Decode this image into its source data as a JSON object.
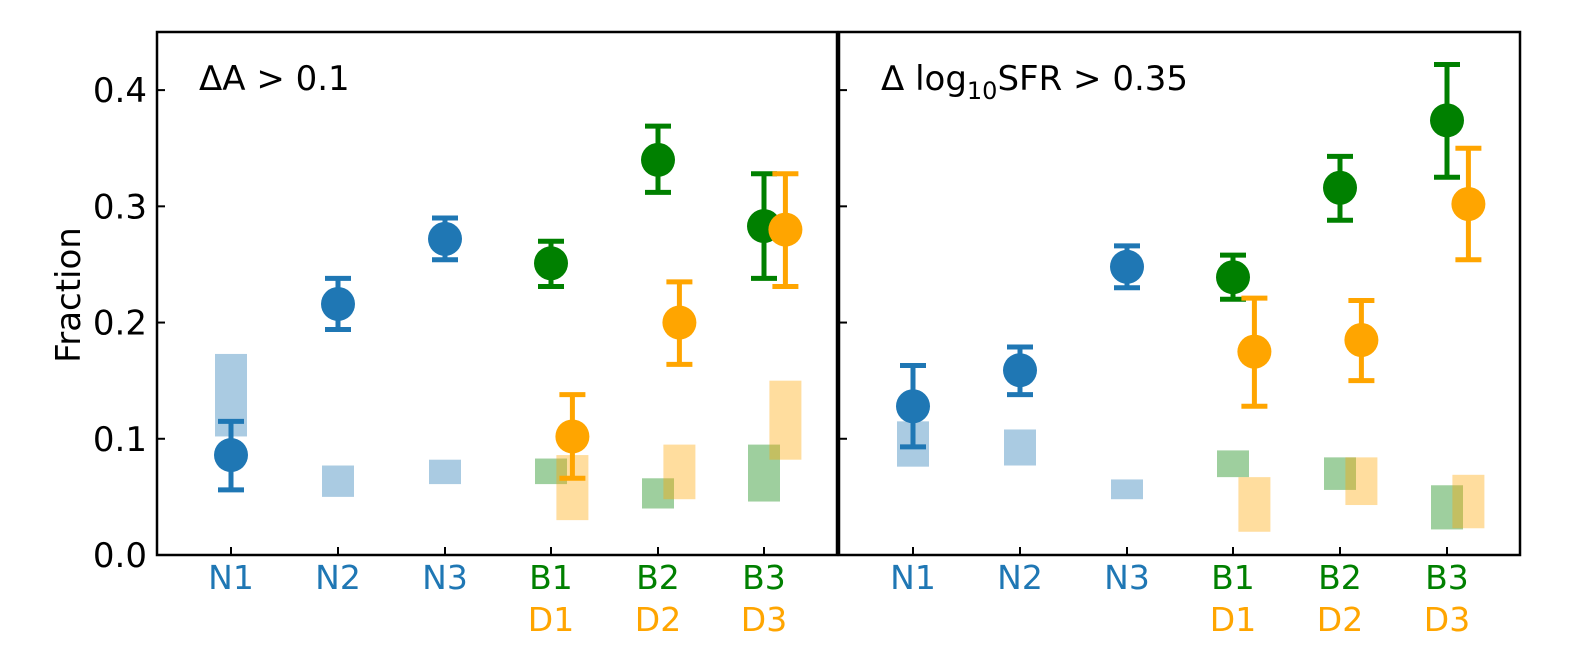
{
  "colors": {
    "N": "#1f77b4",
    "B": "#008000",
    "D": "#ffa500"
  },
  "chart_data": {
    "type": "scatter",
    "ylabel": "Fraction",
    "ylim": [
      0.0,
      0.45
    ],
    "yticks": [
      "0.0",
      "0.1",
      "0.2",
      "0.3",
      "0.4"
    ],
    "categories": [
      {
        "top": "N1",
        "bottom": "",
        "top_color": "N",
        "bottom_color": ""
      },
      {
        "top": "N2",
        "bottom": "",
        "top_color": "N",
        "bottom_color": ""
      },
      {
        "top": "N3",
        "bottom": "",
        "top_color": "N",
        "bottom_color": ""
      },
      {
        "top": "B1",
        "bottom": "D1",
        "top_color": "B",
        "bottom_color": "D"
      },
      {
        "top": "B2",
        "bottom": "D2",
        "top_color": "B",
        "bottom_color": "D"
      },
      {
        "top": "B3",
        "bottom": "D3",
        "top_color": "B",
        "bottom_color": "D"
      }
    ],
    "panels": [
      {
        "annotation_pre": "ΔA > 0.1",
        "annotation_sub": "",
        "annotation_post": "",
        "points": [
          {
            "cat": 0,
            "offset": 0,
            "y": 0.086,
            "lo": 0.056,
            "hi": 0.115,
            "group": "N"
          },
          {
            "cat": 1,
            "offset": 0,
            "y": 0.216,
            "lo": 0.194,
            "hi": 0.238,
            "group": "N"
          },
          {
            "cat": 2,
            "offset": 0,
            "y": 0.272,
            "lo": 0.254,
            "hi": 0.29,
            "group": "N"
          },
          {
            "cat": 3,
            "offset": 0,
            "y": 0.251,
            "lo": 0.231,
            "hi": 0.27,
            "group": "B"
          },
          {
            "cat": 4,
            "offset": 0,
            "y": 0.34,
            "lo": 0.312,
            "hi": 0.369,
            "group": "B"
          },
          {
            "cat": 5,
            "offset": 0,
            "y": 0.283,
            "lo": 0.238,
            "hi": 0.328,
            "group": "B"
          },
          {
            "cat": 3,
            "offset": 0.2,
            "y": 0.102,
            "lo": 0.066,
            "hi": 0.138,
            "group": "D"
          },
          {
            "cat": 4,
            "offset": 0.2,
            "y": 0.2,
            "lo": 0.164,
            "hi": 0.235,
            "group": "D"
          },
          {
            "cat": 5,
            "offset": 0.2,
            "y": 0.28,
            "lo": 0.231,
            "hi": 0.328,
            "group": "D"
          }
        ],
        "bands": [
          {
            "cat": 0,
            "offset": 0,
            "lo": 0.102,
            "hi": 0.173,
            "group": "N"
          },
          {
            "cat": 1,
            "offset": 0,
            "lo": 0.05,
            "hi": 0.077,
            "group": "N"
          },
          {
            "cat": 2,
            "offset": 0,
            "lo": 0.061,
            "hi": 0.082,
            "group": "N"
          },
          {
            "cat": 3,
            "offset": 0,
            "lo": 0.061,
            "hi": 0.083,
            "group": "B"
          },
          {
            "cat": 4,
            "offset": 0,
            "lo": 0.04,
            "hi": 0.066,
            "group": "B"
          },
          {
            "cat": 5,
            "offset": 0,
            "lo": 0.046,
            "hi": 0.095,
            "group": "B"
          },
          {
            "cat": 3,
            "offset": 0.2,
            "lo": 0.03,
            "hi": 0.086,
            "group": "D"
          },
          {
            "cat": 4,
            "offset": 0.2,
            "lo": 0.048,
            "hi": 0.095,
            "group": "D"
          },
          {
            "cat": 5,
            "offset": 0.2,
            "lo": 0.082,
            "hi": 0.15,
            "group": "D"
          }
        ]
      },
      {
        "annotation_pre": "Δ log",
        "annotation_sub": "10",
        "annotation_post": "SFR > 0.35",
        "points": [
          {
            "cat": 0,
            "offset": 0,
            "y": 0.128,
            "lo": 0.093,
            "hi": 0.163,
            "group": "N"
          },
          {
            "cat": 1,
            "offset": 0,
            "y": 0.159,
            "lo": 0.138,
            "hi": 0.179,
            "group": "N"
          },
          {
            "cat": 2,
            "offset": 0,
            "y": 0.248,
            "lo": 0.23,
            "hi": 0.266,
            "group": "N"
          },
          {
            "cat": 3,
            "offset": 0,
            "y": 0.239,
            "lo": 0.22,
            "hi": 0.258,
            "group": "B"
          },
          {
            "cat": 4,
            "offset": 0,
            "y": 0.316,
            "lo": 0.288,
            "hi": 0.343,
            "group": "B"
          },
          {
            "cat": 5,
            "offset": 0,
            "y": 0.374,
            "lo": 0.325,
            "hi": 0.422,
            "group": "B"
          },
          {
            "cat": 3,
            "offset": 0.2,
            "y": 0.175,
            "lo": 0.128,
            "hi": 0.221,
            "group": "D"
          },
          {
            "cat": 4,
            "offset": 0.2,
            "y": 0.185,
            "lo": 0.15,
            "hi": 0.219,
            "group": "D"
          },
          {
            "cat": 5,
            "offset": 0.2,
            "y": 0.302,
            "lo": 0.254,
            "hi": 0.35,
            "group": "D"
          }
        ],
        "bands": [
          {
            "cat": 0,
            "offset": 0,
            "lo": 0.076,
            "hi": 0.115,
            "group": "N"
          },
          {
            "cat": 1,
            "offset": 0,
            "lo": 0.077,
            "hi": 0.108,
            "group": "N"
          },
          {
            "cat": 2,
            "offset": 0,
            "lo": 0.048,
            "hi": 0.065,
            "group": "N"
          },
          {
            "cat": 3,
            "offset": 0,
            "lo": 0.067,
            "hi": 0.09,
            "group": "B"
          },
          {
            "cat": 4,
            "offset": 0,
            "lo": 0.056,
            "hi": 0.084,
            "group": "B"
          },
          {
            "cat": 5,
            "offset": 0,
            "lo": 0.022,
            "hi": 0.06,
            "group": "B"
          },
          {
            "cat": 3,
            "offset": 0.2,
            "lo": 0.02,
            "hi": 0.067,
            "group": "D"
          },
          {
            "cat": 4,
            "offset": 0.2,
            "lo": 0.043,
            "hi": 0.084,
            "group": "D"
          },
          {
            "cat": 5,
            "offset": 0.2,
            "lo": 0.023,
            "hi": 0.069,
            "group": "D"
          }
        ]
      }
    ]
  }
}
